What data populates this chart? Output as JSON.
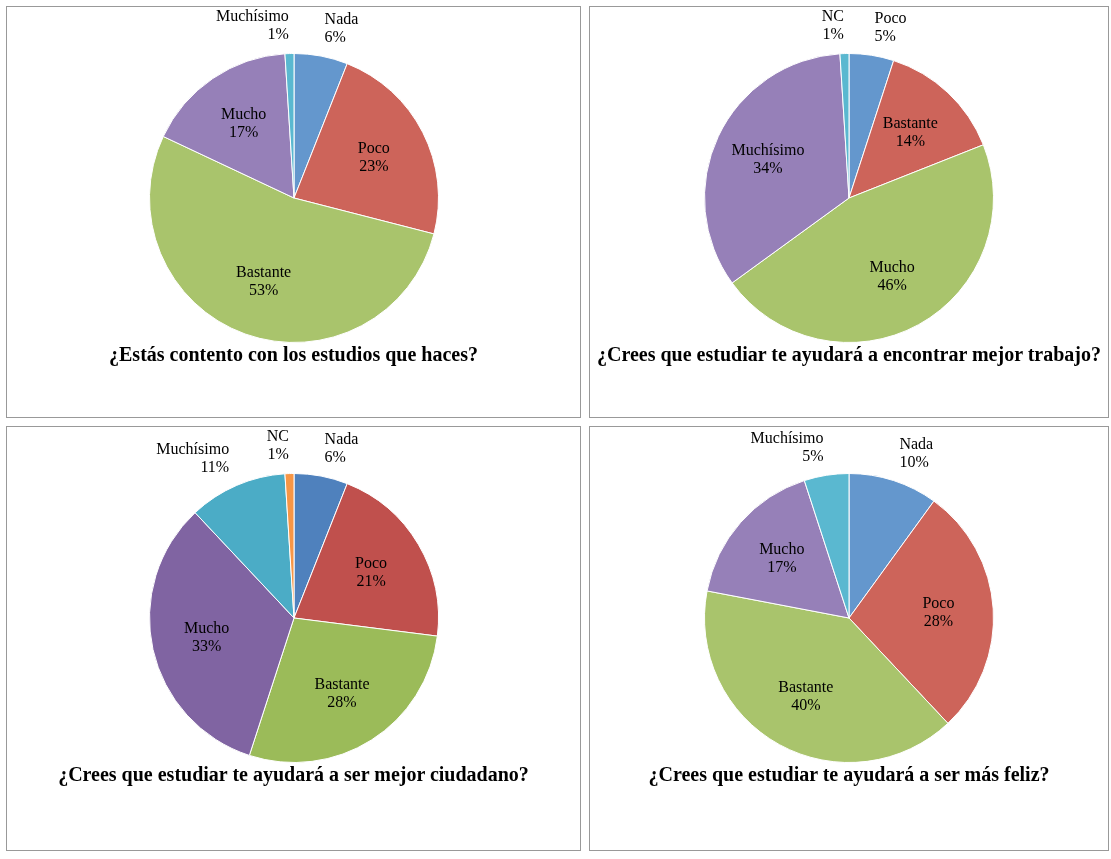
{
  "chart_data": [
    {
      "type": "pie",
      "title": "¿Estás contento con los estudios que haces?",
      "categories": [
        "Nada",
        "Poco",
        "Bastante",
        "Mucho",
        "Muchísimo"
      ],
      "values": [
        6,
        23,
        53,
        17,
        1
      ],
      "colors": [
        "#6497cd",
        "#cd645a",
        "#a9c46c",
        "#9680b8",
        "#5ab8d0"
      ],
      "value_labels": [
        "6%",
        "23%",
        "53%",
        "17%",
        "1%"
      ]
    },
    {
      "type": "pie",
      "title": "¿Crees que estudiar te ayudará a encontrar mejor trabajo?",
      "categories": [
        "Poco",
        "Bastante",
        "Mucho",
        "Muchísimo",
        "NC"
      ],
      "values": [
        5,
        14,
        46,
        34,
        1
      ],
      "colors": [
        "#6497cd",
        "#cd645a",
        "#a9c46c",
        "#9680b8",
        "#5ab8d0"
      ],
      "value_labels": [
        "5%",
        "14%",
        "46%",
        "34%",
        "1%"
      ]
    },
    {
      "type": "pie",
      "title": "¿Crees que estudiar te ayudará a ser mejor ciudadano?",
      "categories": [
        "Nada",
        "Poco",
        "Bastante",
        "Mucho",
        "Muchísimo",
        "NC"
      ],
      "values": [
        6,
        21,
        28,
        33,
        11,
        1
      ],
      "colors": [
        "#4f81bd",
        "#c0504d",
        "#9bbb59",
        "#8064a2",
        "#4bacc6",
        "#f79646"
      ],
      "value_labels": [
        "6%",
        "21%",
        "28%",
        "33%",
        "11%",
        "1%"
      ]
    },
    {
      "type": "pie",
      "title": "¿Crees que estudiar te ayudará a ser más feliz?",
      "categories": [
        "Nada",
        "Poco",
        "Bastante",
        "Mucho",
        "Muchísimo"
      ],
      "values": [
        10,
        28,
        40,
        17,
        5
      ],
      "colors": [
        "#6497cd",
        "#cd645a",
        "#a9c46c",
        "#9680b8",
        "#5ab8d0"
      ],
      "value_labels": [
        "10%",
        "28%",
        "40%",
        "17%",
        "5%"
      ]
    }
  ]
}
